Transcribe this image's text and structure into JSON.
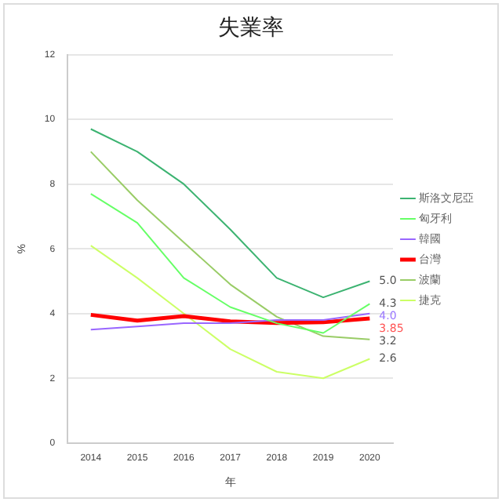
{
  "chart_data": {
    "type": "line",
    "title": "失業率",
    "xlabel": "年",
    "ylabel": "%",
    "categories": [
      "2014",
      "2015",
      "2016",
      "2017",
      "2018",
      "2019",
      "2020"
    ],
    "series": [
      {
        "name": "斯洛文尼亞",
        "color": "#3cb371",
        "values": [
          9.7,
          9.0,
          8.0,
          6.6,
          5.1,
          4.5,
          5.0
        ]
      },
      {
        "name": "匈牙利",
        "color": "#66ff66",
        "values": [
          7.7,
          6.8,
          5.1,
          4.2,
          3.7,
          3.4,
          4.3
        ]
      },
      {
        "name": "韓國",
        "color": "#9966ff",
        "values": [
          3.5,
          3.6,
          3.7,
          3.7,
          3.8,
          3.8,
          4.0
        ]
      },
      {
        "name": "台灣",
        "color": "#ff0000",
        "values": [
          3.96,
          3.78,
          3.92,
          3.76,
          3.71,
          3.73,
          3.85
        ]
      },
      {
        "name": "波蘭",
        "color": "#99cc66",
        "values": [
          9.0,
          7.5,
          6.2,
          4.9,
          3.9,
          3.3,
          3.2
        ]
      },
      {
        "name": "捷克",
        "color": "#ccff66",
        "values": [
          6.1,
          5.1,
          4.0,
          2.9,
          2.2,
          2.0,
          2.6
        ]
      }
    ],
    "ylim": [
      0,
      12
    ],
    "yticks": [
      0,
      2,
      4,
      6,
      8,
      10,
      12
    ],
    "grid": "y",
    "legend": "right",
    "marker": "none",
    "line_style": "solid",
    "annotations": [
      {
        "text": "5.0",
        "x": "2020",
        "y": 5.0
      },
      {
        "text": "4.3",
        "x": "2020",
        "y": 4.3
      },
      {
        "text": "4.0",
        "x": "2020",
        "y": 4.0
      },
      {
        "text": "3.85",
        "x": "2020",
        "y": 3.85
      },
      {
        "text": "3.2",
        "x": "2020",
        "y": 3.2
      },
      {
        "text": "2.6",
        "x": "2020",
        "y": 2.6
      }
    ]
  }
}
